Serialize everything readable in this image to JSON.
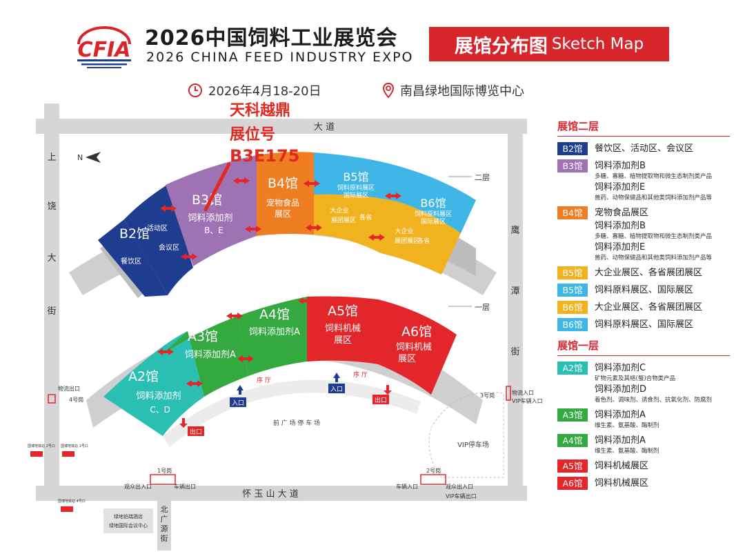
{
  "header": {
    "logo_text": "CFIA",
    "title_cn": "2026中国饲料工业展览会",
    "title_en": "2026 CHINA FEED INDUSTRY EXPO",
    "badge_cn": "展馆分布图",
    "badge_en": "Sketch Map",
    "date": "2026年4月18-20日",
    "venue": "南昌绿地国际博览中心",
    "colors": {
      "brand_red": "#d8242b",
      "brand_blue": "#1f3d8f"
    }
  },
  "annotation": {
    "line1": "天科越鼎",
    "line2": "展位号",
    "line3": "B3E175"
  },
  "roads": {
    "top": "大      道",
    "left": [
      "上",
      "饶",
      "大",
      "街"
    ],
    "right": [
      "鹰",
      "潭",
      "街"
    ],
    "bottom": "怀      玉      山      大      道",
    "north_street": [
      "北",
      "广",
      "源",
      "街"
    ],
    "north_mark": "N"
  },
  "floors": {
    "second": "二层",
    "first": "一层"
  },
  "halls_upper": [
    {
      "id": "B2",
      "title": "B2馆",
      "sub1": "活动区",
      "sub2": "会议区",
      "sub3": "餐饮区",
      "color": "#1f3d8f"
    },
    {
      "id": "B3",
      "title": "B3馆",
      "line1": "饲料添加剂",
      "line2": "B、E",
      "color": "#9f72b3"
    },
    {
      "id": "B4",
      "title": "B4馆",
      "line1": "宠物食品",
      "line2": "展区",
      "color": "#ef7d22"
    },
    {
      "id": "B5",
      "title": "B5馆",
      "line1": "饲料原料展区",
      "line2": "国际展区",
      "sub1": "大企业",
      "sub2": "各省",
      "sub3": "展团展区",
      "color": "#3fb6e6",
      "color_low": "#f0b21e"
    },
    {
      "id": "B6",
      "title": "B6馆",
      "line1": "饲料原料展区",
      "line2": "国际展区",
      "sub1": "大企业",
      "sub2": "各省",
      "sub3": "展团展区",
      "color": "#3fb6e6",
      "color_low": "#f0b21e"
    }
  ],
  "halls_lower": [
    {
      "id": "A2",
      "title": "A2馆",
      "line1": "饲料添加剂",
      "line2": "C、D",
      "color": "#2bbfb3"
    },
    {
      "id": "A3",
      "title": "A3馆",
      "line1": "饲料添加剂A",
      "color": "#33a93f"
    },
    {
      "id": "A4",
      "title": "A4馆",
      "line1": "饲料添加剂A",
      "color": "#33a93f"
    },
    {
      "id": "A5",
      "title": "A5馆",
      "line1": "饲料机械",
      "line2": "展区",
      "color": "#e3262a"
    },
    {
      "id": "A6",
      "title": "A6馆",
      "line1": "饲料机械",
      "line2": "展区",
      "color": "#e3262a"
    }
  ],
  "site_labels": {
    "corridor1": "序  厅",
    "corridor2": "序  厅",
    "entrance1": "入口",
    "entrance2": "入口",
    "exit1": "出口",
    "exit2": "出口",
    "plaza_parking": "前 广 场 停 车 场",
    "vip_parking": "VIP停车场",
    "gate1": "1号岗",
    "gate2": "2号岗",
    "gate3": "3号岗",
    "gate4": "4号岗",
    "logistics_exit": "物流出口",
    "logistics_entry": "物流入口",
    "vip_vehicle_entry": "VIP车辆入口",
    "vip_vehicle_exit": "VIP车辆出口",
    "public_entry_exit": "观众出入口",
    "vehicle_exit": "车辆出口",
    "vehicle_entry": "车辆入口",
    "hotel": "绿地铂瑞酒店",
    "conf_center": "绿地国际会议中心",
    "small1": "国博地铁站\n2号口",
    "small2": "国博地铁站\n1号口",
    "small3": "国博地铁站\n4号口"
  },
  "legend": {
    "floor2_title": "展馆二层",
    "floor1_title": "展馆一层",
    "floor2": [
      {
        "badge": "B2馆",
        "color": "#1f3d8f",
        "lines": [
          {
            "t": "餐饮区、活动区、会议区"
          }
        ]
      },
      {
        "badge": "B3馆",
        "color": "#9f72b3",
        "lines": [
          {
            "t": "饲料添加剂B"
          },
          {
            "s": "多糖、寡糖、植物提取物和微生态制剂类产品"
          },
          {
            "t": "饲料添加剂E"
          },
          {
            "s": "兽药、动物保健品和其他类饲料添加剂产品等"
          }
        ]
      },
      {
        "badge": "B4馆",
        "color": "#ef7d22",
        "lines": [
          {
            "t": "宠物食品展区"
          },
          {
            "t": "饲料添加剂B"
          },
          {
            "s": "多糖、寡糖、植物提取物和微生态制剂类产品"
          },
          {
            "t": "饲料添加剂E"
          },
          {
            "s": "兽药、动物保健品和其他类饲料添加剂产品等"
          }
        ]
      },
      {
        "badge": "B5馆",
        "color": "#f0b21e",
        "lines": [
          {
            "t": "大企业展区、各省展团展区"
          }
        ]
      },
      {
        "badge": "B5馆",
        "color": "#3fb6e6",
        "lines": [
          {
            "t": "饲料原料展区、国际展区"
          }
        ]
      },
      {
        "badge": "B6馆",
        "color": "#f0b21e",
        "lines": [
          {
            "t": "大企业展区、各省展团展区"
          }
        ]
      },
      {
        "badge": "B6馆",
        "color": "#3fb6e6",
        "lines": [
          {
            "t": "饲料原料展区、国际展区"
          }
        ]
      }
    ],
    "floor1": [
      {
        "badge": "A2馆",
        "color": "#2bbfb3",
        "lines": [
          {
            "t": "饲料添加剂C"
          },
          {
            "s": "矿物元素及其络(螯)合物类产品"
          },
          {
            "t": "饲料添加剂D"
          },
          {
            "s": "着色剂、调味剂、诱食剂、抗氧化剂、防腐剂"
          }
        ]
      },
      {
        "badge": "A3馆",
        "color": "#33a93f",
        "lines": [
          {
            "t": "饲料添加剂A"
          },
          {
            "s": "维生素、氨基酸、酶制剂"
          }
        ]
      },
      {
        "badge": "A4馆",
        "color": "#33a93f",
        "lines": [
          {
            "t": "饲料添加剂A"
          },
          {
            "s": "维生素、氨基酸、酶制剂"
          }
        ]
      },
      {
        "badge": "A5馆",
        "color": "#e3262a",
        "lines": [
          {
            "t": "饲料机械展区"
          }
        ]
      },
      {
        "badge": "A6馆",
        "color": "#e3262a",
        "lines": [
          {
            "t": "饲料机械展区"
          }
        ]
      }
    ]
  }
}
